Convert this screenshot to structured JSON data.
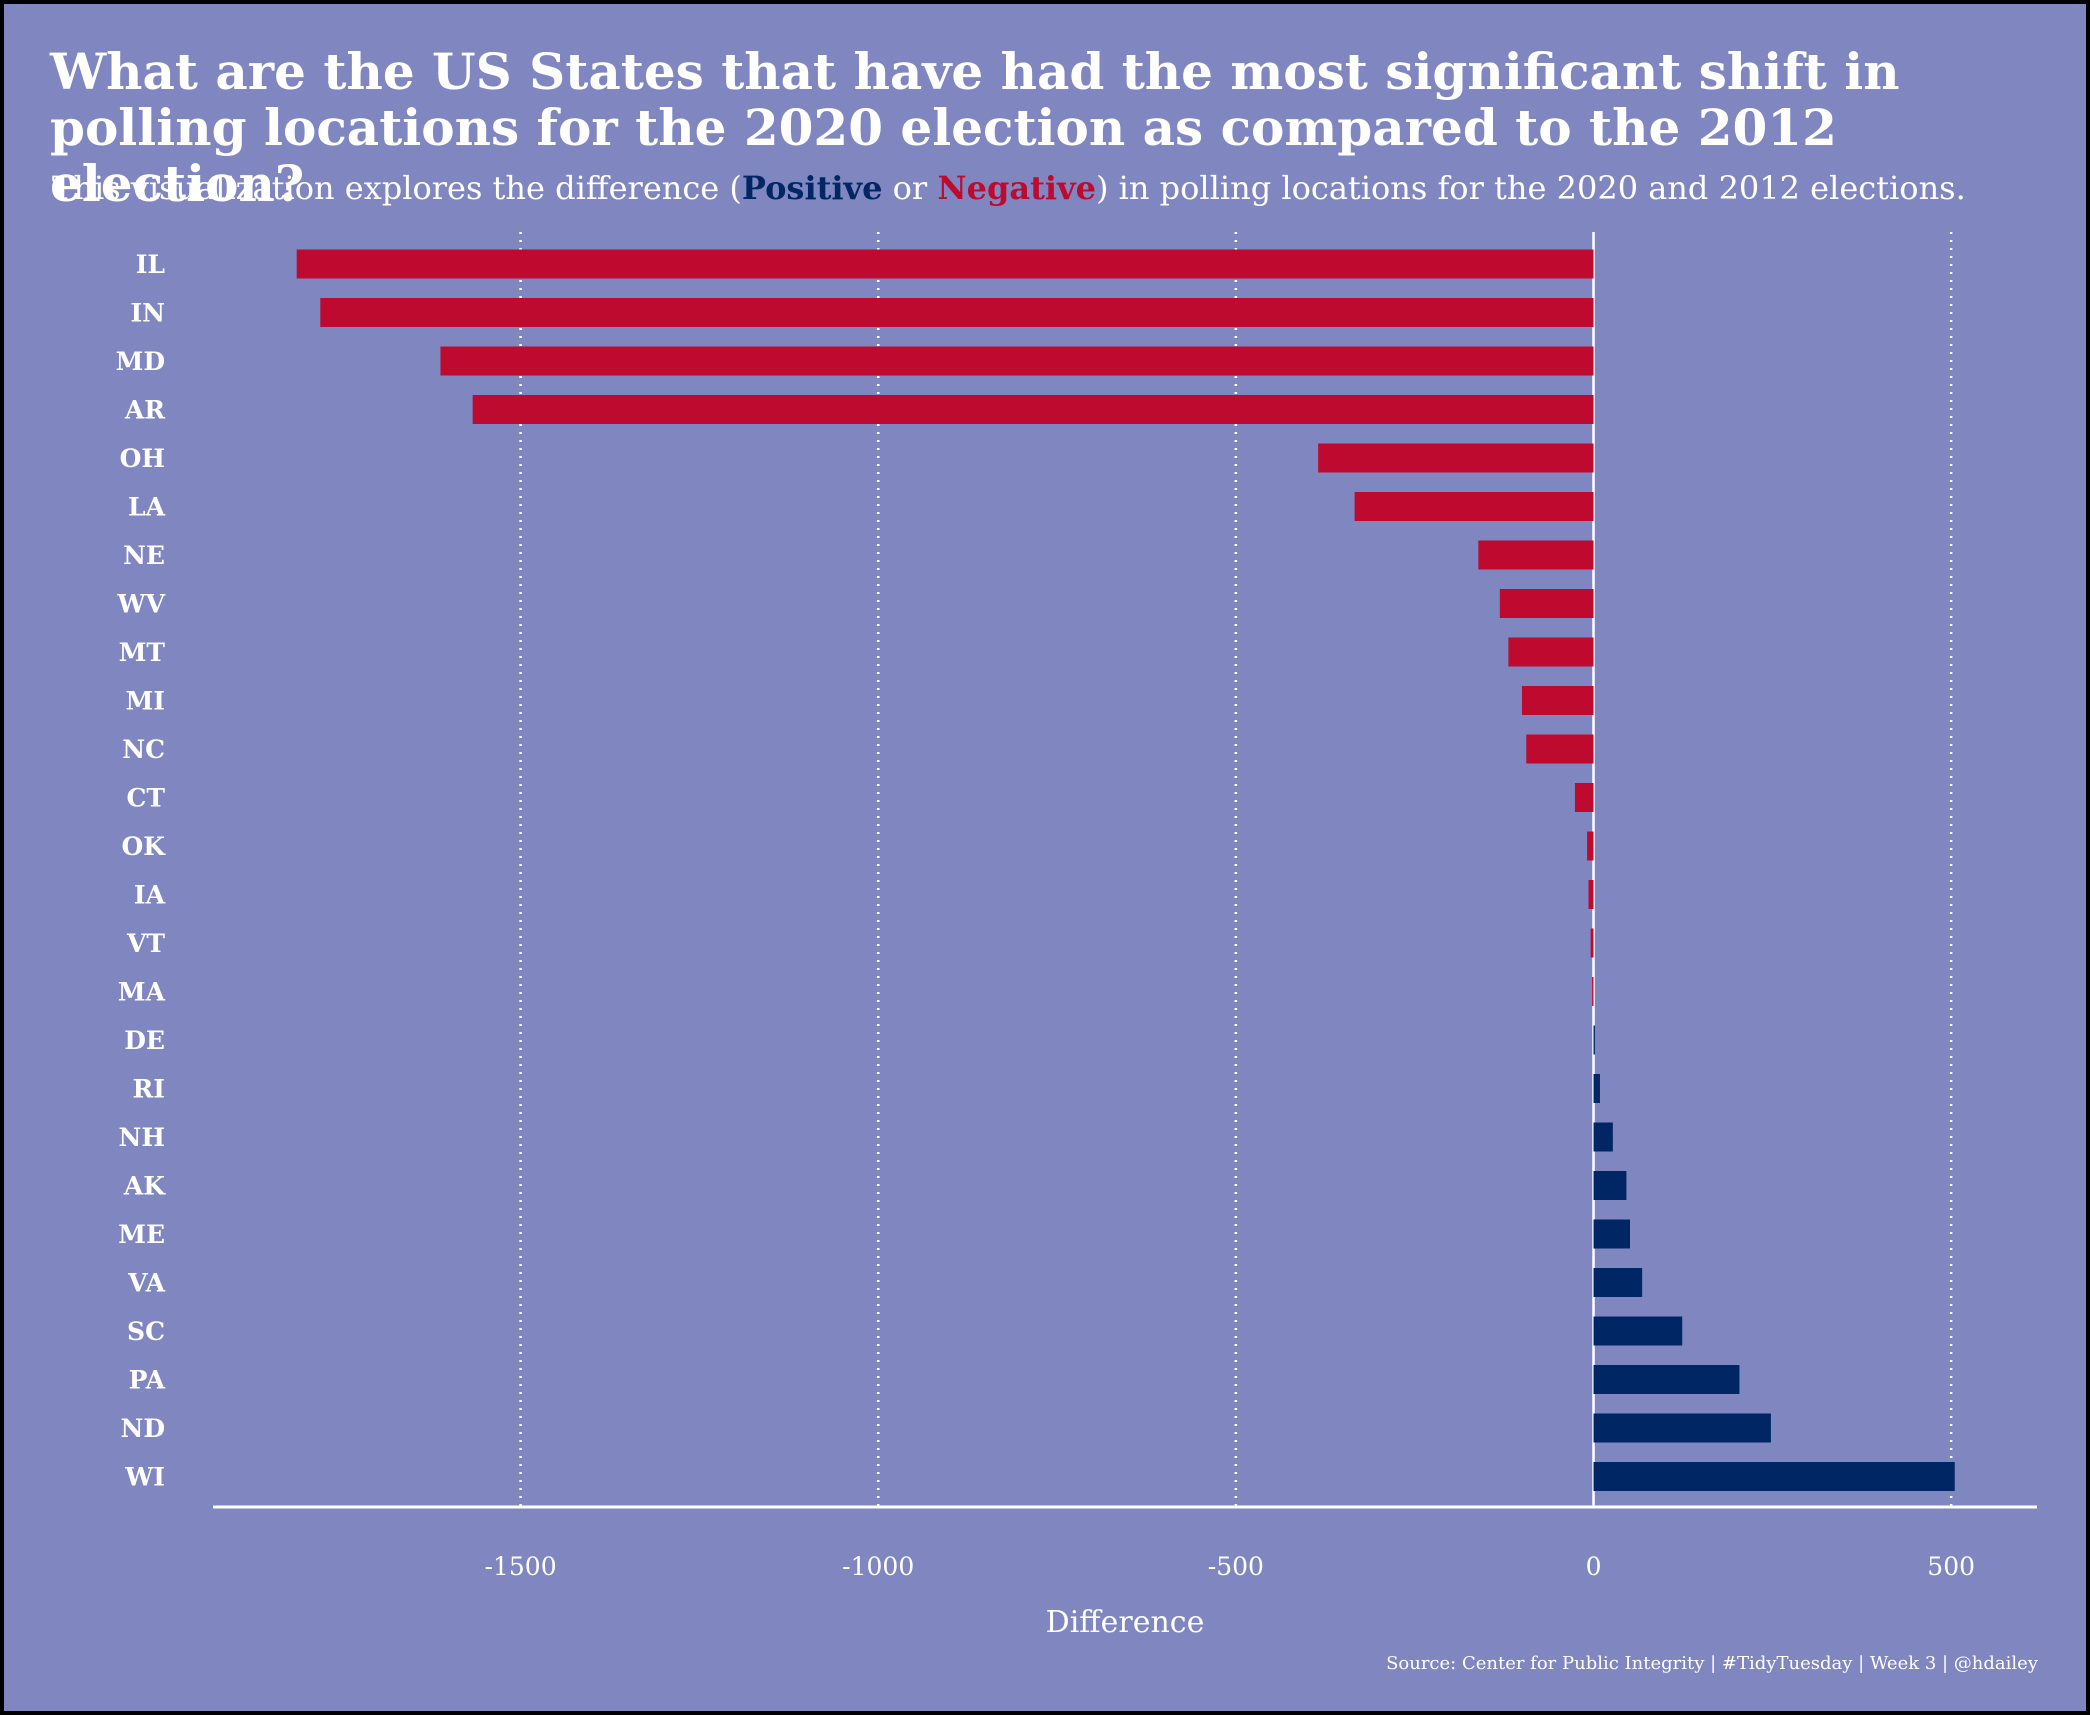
{
  "title": "What are the US States that have had the most significant shift in polling locations for the 2020 election as compared to the 2012 election?",
  "subtitle": {
    "before": "This visualization explores the difference (",
    "positive": "Positive",
    "or": " or ",
    "negative": "Negative",
    "after": ") in polling locations for the 2020 and 2012 elections."
  },
  "caption": "Source: Center for Public Integrity | #TidyTuesday | Week 3 | @hdailey",
  "colors": {
    "background": "#8087C0",
    "positive": "#002664",
    "negative": "#BF0A30",
    "text": "#ffffff"
  },
  "chart_data": {
    "type": "bar",
    "orientation": "horizontal",
    "xlabel": "Difference",
    "ylabel": "",
    "xlim": [
      -1930,
      620
    ],
    "xticks": [
      -1500,
      -1000,
      -500,
      0,
      500
    ],
    "grid": "vertical dotted",
    "categories": [
      "IL",
      "IN",
      "MD",
      "AR",
      "OH",
      "LA",
      "NE",
      "WV",
      "MT",
      "MI",
      "NC",
      "CT",
      "OK",
      "IA",
      "VT",
      "MA",
      "DE",
      "RI",
      "NH",
      "AK",
      "ME",
      "VA",
      "SC",
      "PA",
      "ND",
      "WI"
    ],
    "values": [
      -1813,
      -1780,
      -1612,
      -1567,
      -385,
      -334,
      -161,
      -131,
      -119,
      -100,
      -94,
      -26,
      -9,
      -7,
      -4,
      -2,
      2,
      9,
      27,
      46,
      51,
      68,
      124,
      204,
      248,
      505
    ]
  }
}
